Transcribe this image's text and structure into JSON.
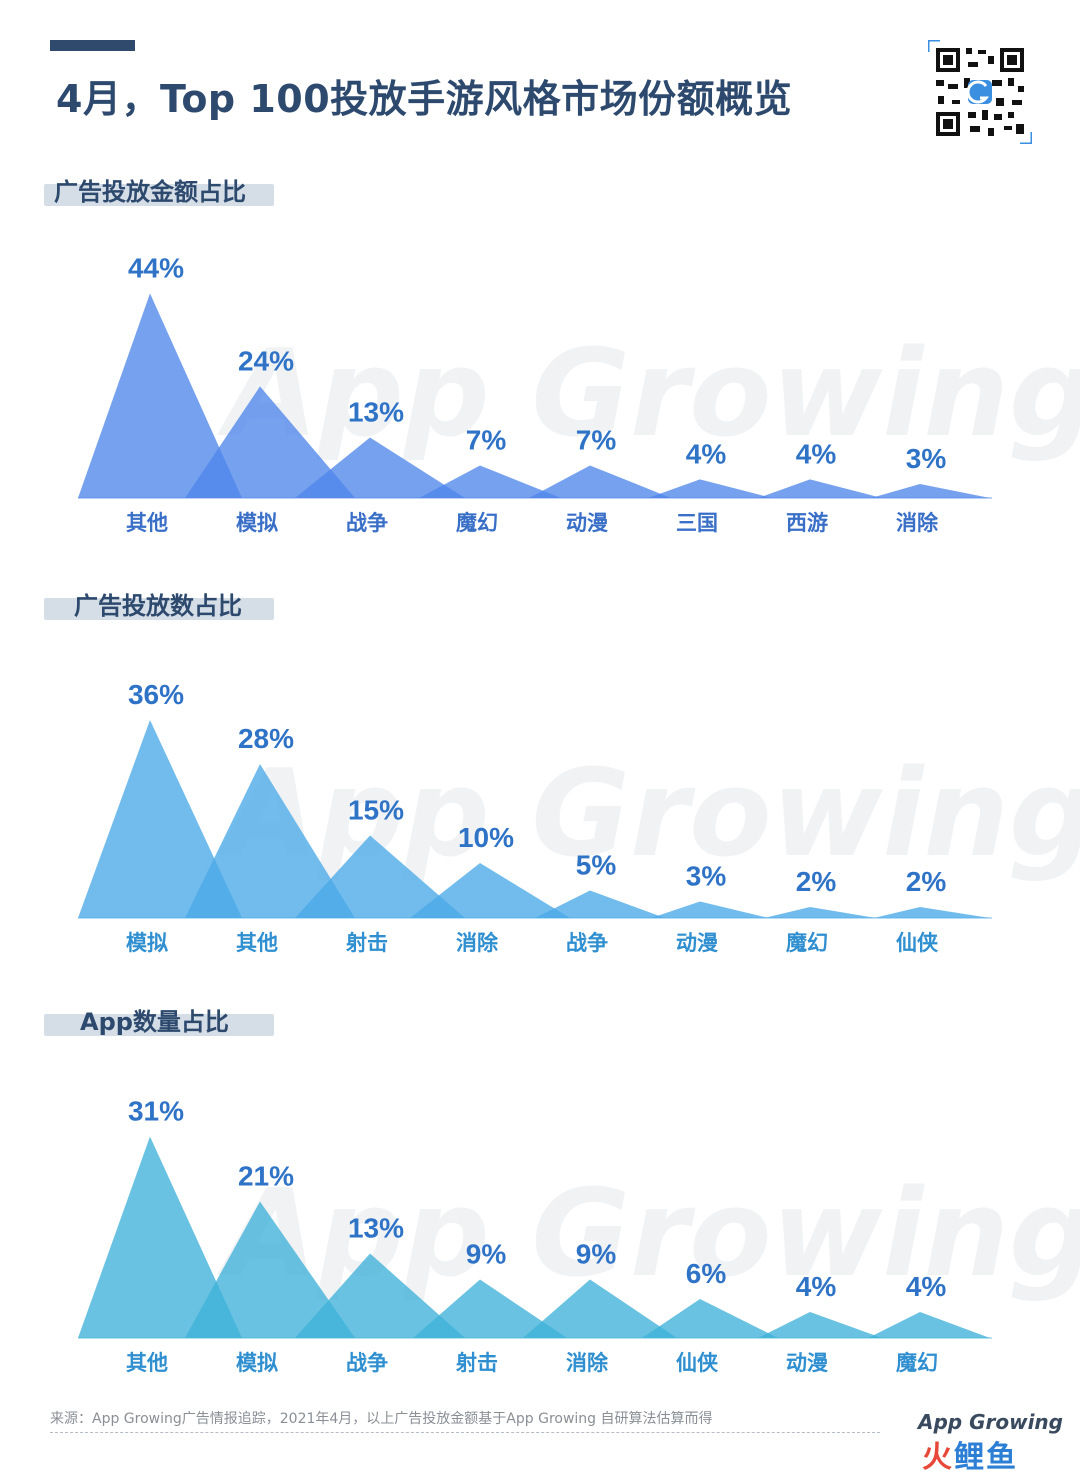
{
  "header": {
    "title": "4月，Top 100投放手游风格市场份额概览"
  },
  "watermark": "App Growing",
  "chart_data": [
    {
      "type": "area",
      "title": "广告投放金额占比",
      "color": "#4f86ea",
      "categories": [
        "其他",
        "模拟",
        "战争",
        "魔幻",
        "动漫",
        "三国",
        "西游",
        "消除"
      ],
      "values": [
        44,
        24,
        13,
        7,
        7,
        4,
        4,
        3
      ],
      "labels": [
        "44%",
        "24%",
        "13%",
        "7%",
        "7%",
        "4%",
        "4%",
        "3%"
      ]
    },
    {
      "type": "area",
      "title": "广告投放数占比",
      "color": "#4aa9e8",
      "categories": [
        "模拟",
        "其他",
        "射击",
        "消除",
        "战争",
        "动漫",
        "魔幻",
        "仙侠"
      ],
      "values": [
        36,
        28,
        15,
        10,
        5,
        3,
        2,
        2
      ],
      "labels": [
        "36%",
        "28%",
        "15%",
        "10%",
        "5%",
        "3%",
        "2%",
        "2%"
      ]
    },
    {
      "type": "area",
      "title": "App数量占比",
      "color": "#3fb1d9",
      "categories": [
        "其他",
        "模拟",
        "战争",
        "射击",
        "消除",
        "仙侠",
        "动漫",
        "魔幻"
      ],
      "values": [
        31,
        21,
        13,
        9,
        9,
        6,
        4,
        4
      ],
      "labels": [
        "31%",
        "21%",
        "13%",
        "9%",
        "9%",
        "6%",
        "4%",
        "4%"
      ]
    }
  ],
  "footer": {
    "source": "来源：App Growing广告情报追踪，2021年4月，以上广告投放金额基于App Growing 自研算法估算而得",
    "logo_top": "App Growing",
    "logo_chars": [
      "火",
      "鲤",
      "鱼"
    ]
  }
}
